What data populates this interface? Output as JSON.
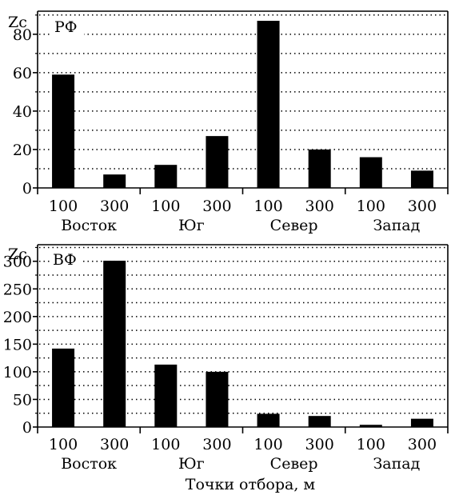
{
  "chart_data": [
    {
      "type": "bar",
      "panel_label": "РФ",
      "ylabel": "Zc",
      "ylim": [
        0,
        92
      ],
      "yticks": [
        0,
        20,
        40,
        60,
        80
      ],
      "grid": true,
      "categories": [
        "100",
        "300",
        "100",
        "300",
        "100",
        "300",
        "100",
        "300"
      ],
      "groups": [
        "Восток",
        "Юг",
        "Север",
        "Запад"
      ],
      "values": [
        59,
        7,
        12,
        27,
        87,
        20,
        16,
        9
      ],
      "bar_color": "#000000"
    },
    {
      "type": "bar",
      "panel_label": "ВФ",
      "ylabel": "Zc",
      "ylim": [
        0,
        330
      ],
      "yticks": [
        0,
        50,
        100,
        150,
        200,
        250,
        300
      ],
      "grid": true,
      "categories": [
        "100",
        "300",
        "100",
        "300",
        "100",
        "300",
        "100",
        "300"
      ],
      "groups": [
        "Восток",
        "Юг",
        "Север",
        "Запад"
      ],
      "values": [
        142,
        301,
        113,
        100,
        24,
        20,
        4,
        15
      ],
      "bar_color": "#000000"
    }
  ],
  "xlabel": "Точки отбора, м"
}
